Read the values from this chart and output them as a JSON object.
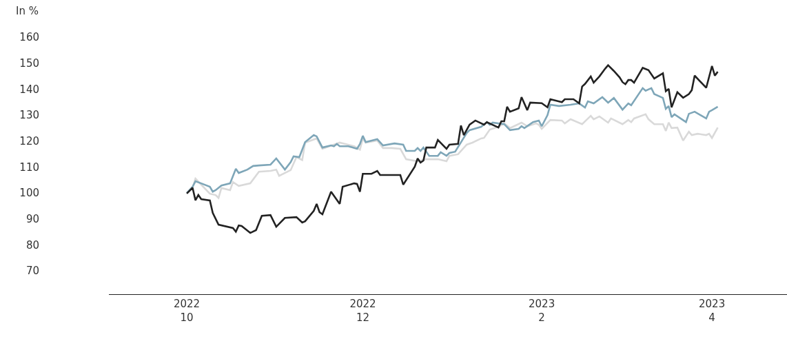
{
  "chart_data": {
    "type": "line",
    "ylabel": "In %",
    "xlim": [
      "2022-09-04",
      "2023-04-27"
    ],
    "ylim": [
      61,
      160
    ],
    "xticks": [
      {
        "value": "2022-10-01",
        "label": "2022\n10"
      },
      {
        "value": "2022-12-01",
        "label": "2022\n12"
      },
      {
        "value": "2023-02-01",
        "label": "2023\n2"
      },
      {
        "value": "2023-04-01",
        "label": "2023\n4"
      }
    ],
    "yticks": [
      70,
      80,
      90,
      100,
      110,
      120,
      130,
      140,
      150,
      160
    ],
    "marker": "none",
    "line_style": "solid",
    "series": [
      {
        "color": "#d9d9d9",
        "x": [
          "2022-10-01",
          "2022-10-03",
          "2022-10-04",
          "2022-10-06",
          "2022-10-09",
          "2022-10-11",
          "2022-10-12",
          "2022-10-13",
          "2022-10-16",
          "2022-10-17",
          "2022-10-19",
          "2022-10-23",
          "2022-10-26",
          "2022-10-30",
          "2022-11-01",
          "2022-11-02",
          "2022-11-06",
          "2022-11-08",
          "2022-11-10",
          "2022-11-11",
          "2022-11-15",
          "2022-11-17",
          "2022-11-23",
          "2022-11-28",
          "2022-11-30",
          "2022-12-01",
          "2022-12-02",
          "2022-12-06",
          "2022-12-08",
          "2022-12-11",
          "2022-12-14",
          "2022-12-16",
          "2022-12-20",
          "2022-12-23",
          "2022-12-27",
          "2022-12-30",
          "2022-12-31",
          "2023-01-03",
          "2023-01-06",
          "2023-01-08",
          "2023-01-11",
          "2023-01-12",
          "2023-01-14",
          "2023-01-17",
          "2023-01-19",
          "2023-01-21",
          "2023-01-25",
          "2023-01-27",
          "2023-01-30",
          "2023-01-31",
          "2023-02-01",
          "2023-02-04",
          "2023-02-08",
          "2023-02-09",
          "2023-02-11",
          "2023-02-15",
          "2023-02-16",
          "2023-02-18",
          "2023-02-19",
          "2023-02-21",
          "2023-02-24",
          "2023-02-25",
          "2023-03-01",
          "2023-03-03",
          "2023-03-04",
          "2023-03-05",
          "2023-03-09",
          "2023-03-10",
          "2023-03-12",
          "2023-03-15",
          "2023-03-16",
          "2023-03-17",
          "2023-03-18",
          "2023-03-20",
          "2023-03-22",
          "2023-03-24",
          "2023-03-25",
          "2023-03-27",
          "2023-03-30",
          "2023-03-31",
          "2023-04-01",
          "2023-04-03"
        ],
        "values": [
          100,
          102,
          105.5,
          103.2,
          99.7,
          99.2,
          98.1,
          101.9,
          101.1,
          104.2,
          102.7,
          103.7,
          108.2,
          108.5,
          109,
          106.6,
          108.8,
          113.8,
          112.7,
          119.4,
          121,
          117,
          119.4,
          118,
          116.7,
          121,
          119.4,
          120.2,
          117.3,
          117.3,
          117,
          113,
          112.2,
          113,
          113,
          112.2,
          114.3,
          114.9,
          118.6,
          119.4,
          121,
          121.2,
          124.4,
          125.5,
          126.8,
          125,
          127.1,
          125.7,
          126.8,
          126.3,
          124.7,
          128.1,
          127.9,
          126.8,
          128.4,
          126.5,
          127.6,
          129.7,
          128.4,
          129.5,
          127.1,
          128.7,
          126.5,
          128.1,
          127.3,
          128.7,
          130.3,
          128.4,
          126.5,
          126.5,
          123.9,
          127.1,
          125,
          125.2,
          120.2,
          123.6,
          122.3,
          122.8,
          122.3,
          122.8,
          121.2,
          125.2
        ]
      },
      {
        "color": "#7ea6b8",
        "x": [
          "2022-10-01",
          "2022-10-03",
          "2022-10-04",
          "2022-10-06",
          "2022-10-09",
          "2022-10-10",
          "2022-10-11",
          "2022-10-13",
          "2022-10-16",
          "2022-10-18",
          "2022-10-19",
          "2022-10-22",
          "2022-10-24",
          "2022-10-26",
          "2022-10-30",
          "2022-11-01",
          "2022-11-04",
          "2022-11-06",
          "2022-11-07",
          "2022-11-09",
          "2022-11-11",
          "2022-11-14",
          "2022-11-15",
          "2022-11-17",
          "2022-11-20",
          "2022-11-21",
          "2022-11-22",
          "2022-11-23",
          "2022-11-26",
          "2022-11-29",
          "2022-11-30",
          "2022-12-01",
          "2022-12-02",
          "2022-12-06",
          "2022-12-08",
          "2022-12-12",
          "2022-12-15",
          "2022-12-16",
          "2022-12-19",
          "2022-12-20",
          "2022-12-21",
          "2022-12-22",
          "2022-12-24",
          "2022-12-27",
          "2022-12-28",
          "2022-12-30",
          "2022-12-31",
          "2023-01-02",
          "2023-01-06",
          "2023-01-07",
          "2023-01-11",
          "2023-01-13",
          "2023-01-14",
          "2023-01-15",
          "2023-01-19",
          "2023-01-21",
          "2023-01-24",
          "2023-01-25",
          "2023-01-26",
          "2023-01-29",
          "2023-01-31",
          "2023-02-01",
          "2023-02-03",
          "2023-02-04",
          "2023-02-07",
          "2023-02-11",
          "2023-02-14",
          "2023-02-16",
          "2023-02-17",
          "2023-02-19",
          "2023-02-22",
          "2023-02-24",
          "2023-02-26",
          "2023-03-01",
          "2023-03-03",
          "2023-03-04",
          "2023-03-08",
          "2023-03-09",
          "2023-03-11",
          "2023-03-12",
          "2023-03-15",
          "2023-03-16",
          "2023-03-17",
          "2023-03-18",
          "2023-03-19",
          "2023-03-23",
          "2023-03-24",
          "2023-03-26",
          "2023-03-30",
          "2023-03-31",
          "2023-04-01",
          "2023-04-03"
        ],
        "values": [
          100,
          102.4,
          104.5,
          103.7,
          102.4,
          100.5,
          101.1,
          102.9,
          103.7,
          109.3,
          107.7,
          109,
          110.4,
          110.6,
          110.9,
          113.3,
          109,
          111.9,
          114.1,
          113.8,
          119.6,
          122.3,
          121.8,
          117.5,
          118.3,
          118,
          118.9,
          118,
          118,
          117,
          118.9,
          122,
          119.6,
          120.7,
          118.3,
          119.1,
          118.6,
          116.2,
          116.2,
          117.3,
          116.2,
          117.5,
          114.3,
          114.3,
          115.7,
          114.3,
          115.4,
          115.9,
          123.1,
          124.2,
          125.5,
          127.3,
          126.3,
          127.1,
          126.5,
          124.2,
          124.7,
          125.7,
          125,
          127.3,
          127.9,
          125.7,
          130,
          134,
          133.5,
          134,
          134.5,
          132.9,
          135.3,
          134.5,
          136.9,
          134.8,
          136.6,
          132.1,
          134.5,
          133.8,
          140.4,
          139.4,
          140.4,
          138.1,
          136.6,
          132.4,
          133.5,
          129.2,
          130.3,
          127.3,
          130.5,
          131.3,
          128.7,
          131.3,
          131.9,
          133.2
        ]
      },
      {
        "color": "#222222",
        "x": [
          "2022-10-01",
          "2022-10-03",
          "2022-10-04",
          "2022-10-05",
          "2022-10-06",
          "2022-10-09",
          "2022-10-10",
          "2022-10-12",
          "2022-10-17",
          "2022-10-18",
          "2022-10-19",
          "2022-10-20",
          "2022-10-23",
          "2022-10-25",
          "2022-10-27",
          "2022-10-30",
          "2022-11-01",
          "2022-11-04",
          "2022-11-08",
          "2022-11-10",
          "2022-11-11",
          "2022-11-14",
          "2022-11-15",
          "2022-11-16",
          "2022-11-17",
          "2022-11-20",
          "2022-11-23",
          "2022-11-24",
          "2022-11-28",
          "2022-11-29",
          "2022-11-30",
          "2022-12-01",
          "2022-12-04",
          "2022-12-06",
          "2022-12-07",
          "2022-12-14",
          "2022-12-15",
          "2022-12-19",
          "2022-12-20",
          "2022-12-21",
          "2022-12-22",
          "2022-12-23",
          "2022-12-26",
          "2022-12-27",
          "2022-12-30",
          "2022-12-31",
          "2023-01-03",
          "2023-01-04",
          "2023-01-05",
          "2023-01-07",
          "2023-01-09",
          "2023-01-12",
          "2023-01-13",
          "2023-01-17",
          "2023-01-18",
          "2023-01-19",
          "2023-01-20",
          "2023-01-21",
          "2023-01-24",
          "2023-01-25",
          "2023-01-27",
          "2023-01-28",
          "2023-02-01",
          "2023-02-03",
          "2023-02-04",
          "2023-02-08",
          "2023-02-09",
          "2023-02-12",
          "2023-02-14",
          "2023-02-15",
          "2023-02-16",
          "2023-02-18",
          "2023-02-19",
          "2023-02-21",
          "2023-02-23",
          "2023-02-24",
          "2023-02-26",
          "2023-02-28",
          "2023-03-01",
          "2023-03-02",
          "2023-03-03",
          "2023-03-04",
          "2023-03-05",
          "2023-03-08",
          "2023-03-10",
          "2023-03-12",
          "2023-03-15",
          "2023-03-16",
          "2023-03-17",
          "2023-03-18",
          "2023-03-20",
          "2023-03-22",
          "2023-03-24",
          "2023-03-25",
          "2023-03-26",
          "2023-03-30",
          "2023-04-01",
          "2023-04-02",
          "2023-04-03"
        ],
        "values": [
          99.8,
          102,
          97.2,
          99.2,
          97.6,
          97.1,
          92.3,
          87.8,
          86.5,
          85.1,
          87.5,
          87.3,
          84.6,
          85.7,
          91.2,
          91.5,
          87,
          90.4,
          90.7,
          88.6,
          89.1,
          93.1,
          95.8,
          92.6,
          91.8,
          100.5,
          95.8,
          102.4,
          103.7,
          103.5,
          100.5,
          107.4,
          107.4,
          108.5,
          106.9,
          106.9,
          103.2,
          110.1,
          113.3,
          111.7,
          112.5,
          117.5,
          117.5,
          120.4,
          117,
          118.6,
          118.9,
          126,
          122.3,
          126.3,
          127.9,
          126.3,
          127.3,
          125.2,
          127.6,
          127.6,
          133.2,
          131.3,
          132.6,
          136.9,
          131.9,
          134.8,
          134.6,
          133,
          136.1,
          135,
          136.1,
          136.1,
          134.5,
          141,
          142,
          144.9,
          142.5,
          144.9,
          147.9,
          149.2,
          147,
          144.5,
          142.7,
          141.9,
          143.5,
          143.5,
          142.5,
          148.2,
          147.3,
          144.1,
          146.1,
          139.2,
          140.1,
          133,
          138.8,
          136.7,
          138.1,
          139.6,
          145.2,
          140.5,
          148.9,
          145.2,
          146.7
        ]
      }
    ]
  }
}
